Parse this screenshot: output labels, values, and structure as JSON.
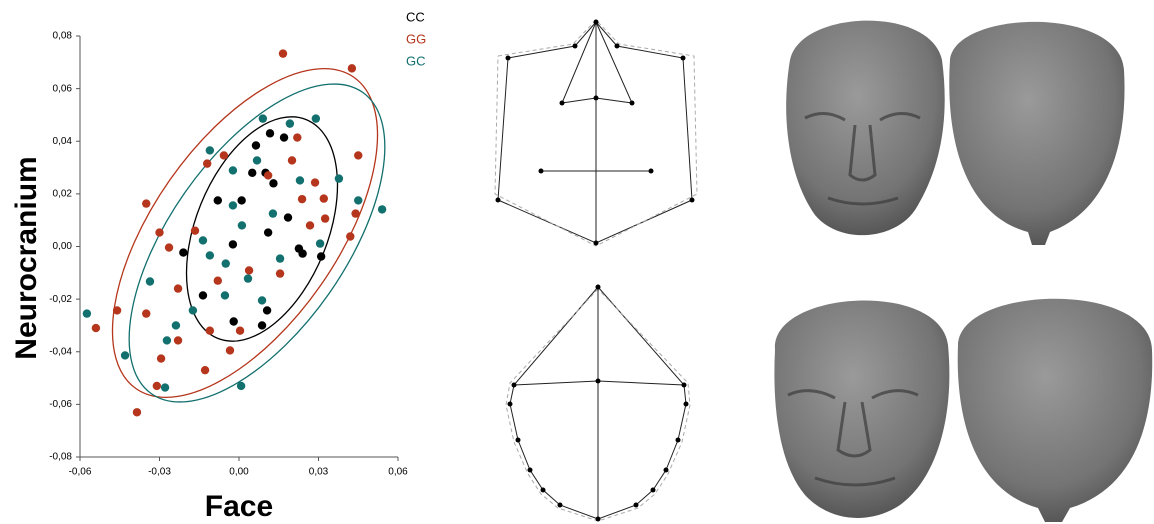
{
  "chart_data": {
    "type": "scatter",
    "xlabel": "Face",
    "ylabel": "Neurocranium",
    "xlim": [
      -0.06,
      0.06
    ],
    "xticks": [
      {
        "value": -0.06,
        "label": "-0,06"
      },
      {
        "value": -0.03,
        "label": "-0,03"
      },
      {
        "value": 0,
        "label": "0,00"
      },
      {
        "value": 0.03,
        "label": "0,03"
      },
      {
        "value": 0.06,
        "label": "0,06"
      }
    ],
    "ylim": [
      -0.08,
      0.08
    ],
    "yticks": [
      {
        "value": -0.08,
        "label": "-0,08"
      },
      {
        "value": -0.06,
        "label": "-0,06"
      },
      {
        "value": -0.04,
        "label": "-0,04"
      },
      {
        "value": -0.02,
        "label": "-0,02"
      },
      {
        "value": 0,
        "label": "0,00"
      },
      {
        "value": 0.02,
        "label": "0,02"
      },
      {
        "value": 0.04,
        "label": "0,04"
      },
      {
        "value": 0.06,
        "label": "0,06"
      },
      {
        "value": 0.08,
        "label": "0,08"
      }
    ],
    "series": [
      {
        "name": "CC",
        "color": "#000000",
        "x": [
          0.0064,
          0.0117,
          0.017,
          0.001,
          -0.008,
          0.005,
          0.01,
          0.013,
          0.0185,
          -0.0023,
          0.011,
          -0.021,
          -0.0136,
          0.0106,
          0.0226,
          0.031,
          -0.002,
          0.0087,
          0.024
        ],
        "values": [
          0.0384,
          0.043,
          0.0414,
          0.0175,
          0.0175,
          0.028,
          0.028,
          0.024,
          0.011,
          0.0008,
          0.0053,
          -0.0023,
          -0.0186,
          -0.0243,
          -0.0008,
          -0.0038,
          -0.0285,
          -0.03,
          -0.0027
        ]
      },
      {
        "name": "GG",
        "color": "#b5361c",
        "x": [
          0.0166,
          0.0426,
          0.045,
          0.044,
          0.042,
          -0.0385,
          -0.054,
          -0.046,
          -0.035,
          -0.03,
          -0.0264,
          -0.012,
          -0.0057,
          0.022,
          0.0287,
          0.032,
          0.02,
          0.0268,
          0.0325,
          0.0155,
          0.0038,
          -0.008,
          -0.0166,
          -0.011,
          -0.0034,
          -0.023,
          -0.0294,
          -0.035,
          -0.023,
          0.0004,
          0.0238,
          0.011,
          -0.031,
          -0.0128
        ],
        "values": [
          0.0733,
          0.0677,
          0.0346,
          0.0125,
          0.0038,
          -0.063,
          -0.031,
          -0.0243,
          0.0163,
          0.0053,
          -0.0004,
          0.0315,
          0.0346,
          0.0414,
          0.0243,
          0.0182,
          0.0327,
          0.008,
          0.0106,
          -0.0103,
          -0.0091,
          -0.013,
          0.006,
          -0.032,
          -0.0395,
          -0.016,
          -0.0426,
          -0.0255,
          -0.0357,
          -0.032,
          0.018,
          0.027,
          -0.053,
          -0.047
        ]
      },
      {
        "name": "GC",
        "color": "#12706e",
        "x": [
          -0.0574,
          0.054,
          0.0008,
          -0.043,
          -0.0279,
          -0.011,
          0.009,
          0.029,
          0.0192,
          0.0377,
          0.045,
          -0.0023,
          0.0306,
          -0.005,
          -0.011,
          0.0034,
          0.0087,
          0.0155,
          -0.0174,
          -0.0238,
          -0.0272,
          0.0068,
          -0.0023,
          -0.0136,
          0.0128,
          0.0011,
          0.023,
          -0.0336,
          -0.0053
        ],
        "values": [
          -0.0255,
          0.0141,
          -0.053,
          -0.0414,
          -0.0536,
          0.0365,
          0.0486,
          0.0486,
          0.0467,
          0.0258,
          0.0175,
          0.0289,
          0.0011,
          -0.0065,
          -0.0034,
          -0.0122,
          -0.0205,
          -0.0046,
          -0.0243,
          -0.03,
          -0.0357,
          0.0327,
          0.0156,
          0.0023,
          0.0125,
          0.008,
          0.0251,
          -0.0133,
          -0.0186
        ]
      }
    ]
  }
}
